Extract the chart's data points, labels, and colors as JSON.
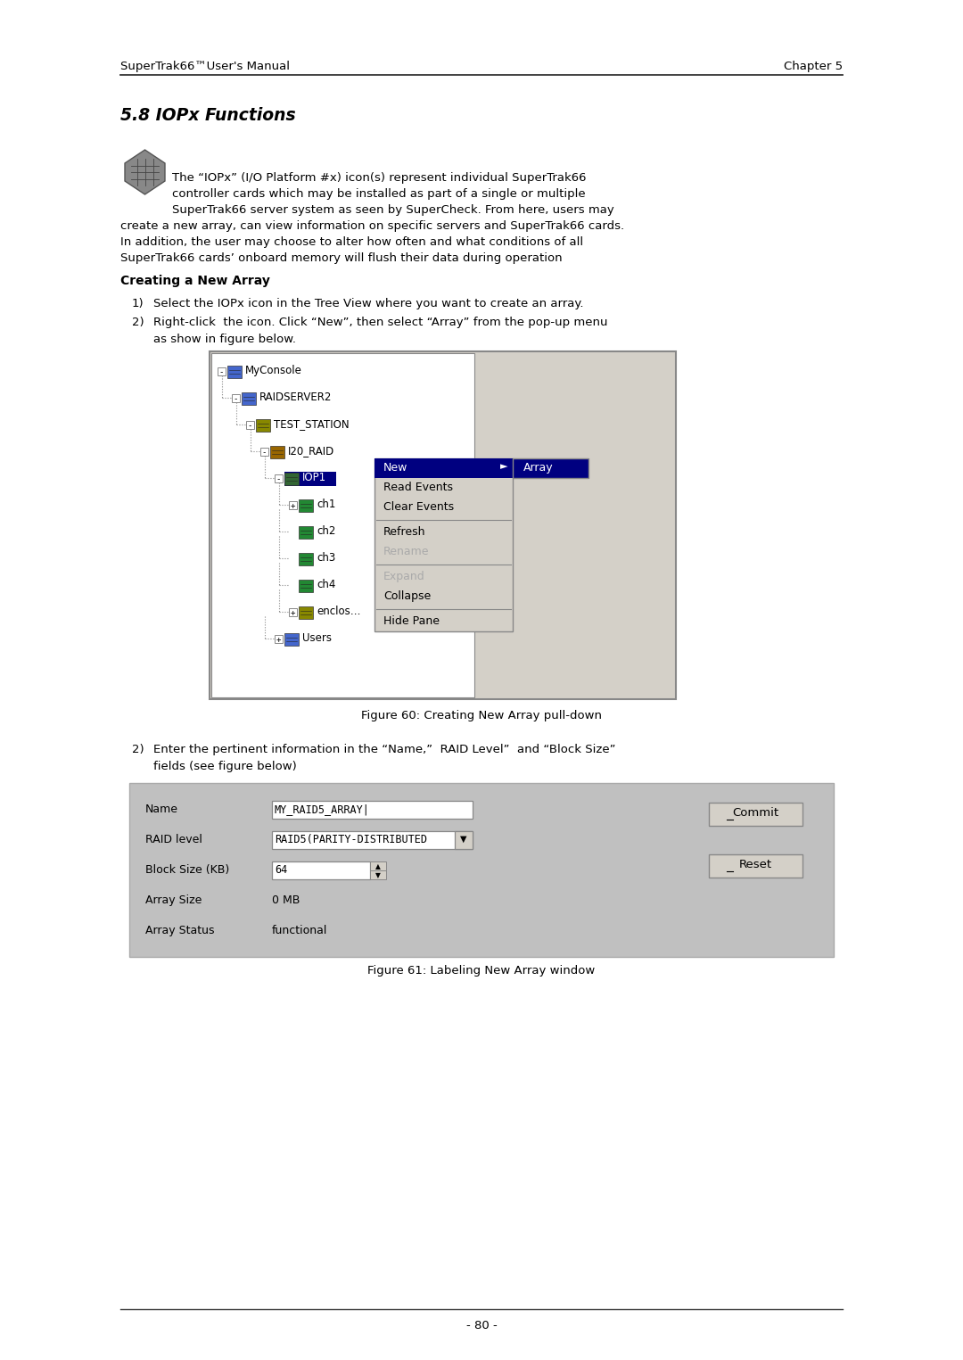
{
  "page_width": 10.8,
  "page_height": 15.25,
  "bg_color": "#ffffff",
  "header_left": "SuperTrak66™User's Manual",
  "header_right": "Chapter 5",
  "footer_text": "- 80 -",
  "section_title": "5.8 IOPx Functions",
  "intro_line1": "The “IOPx” (I/O Platform #x) icon(s) represent individual SuperTrak66",
  "intro_line2": "controller cards which may be installed as part of a single or multiple",
  "intro_line3": "SuperTrak66 server system as seen by SuperCheck. From here, users may",
  "intro_line4": "create a new array, can view information on specific servers and SuperTrak66 cards.",
  "intro_line5": "In addition, the user may choose to alter how often and what conditions of all",
  "intro_line6": "SuperTrak66 cards’ onboard memory will flush their data during operation",
  "subsection_title": "Creating a New Array",
  "step1": "Select the IOPx icon in the Tree View where you want to create an array.",
  "step2a": "Right-click  the icon. Click “New”, then select “Array” from the pop-up menu",
  "step2b": "as show in figure below.",
  "fig60_caption": "Figure 60: Creating New Array pull-down",
  "step3a": "Enter the pertinent information in the “Name,”  RAID Level”  and “Block Size”",
  "step3b": "fields (see figure below)",
  "fig61_caption": "Figure 61: Labeling New Array window",
  "form_buttons": [
    "Commit",
    "Reset"
  ],
  "tree_color_highlight": "#000080",
  "context_menu_bg": "#d4d0c8",
  "context_menu_highlight": "#000080",
  "form_bg": "#c0c0c0",
  "field_bg": "#ffffff",
  "tree_bg": "#ffffff",
  "figure_border": "#808080"
}
